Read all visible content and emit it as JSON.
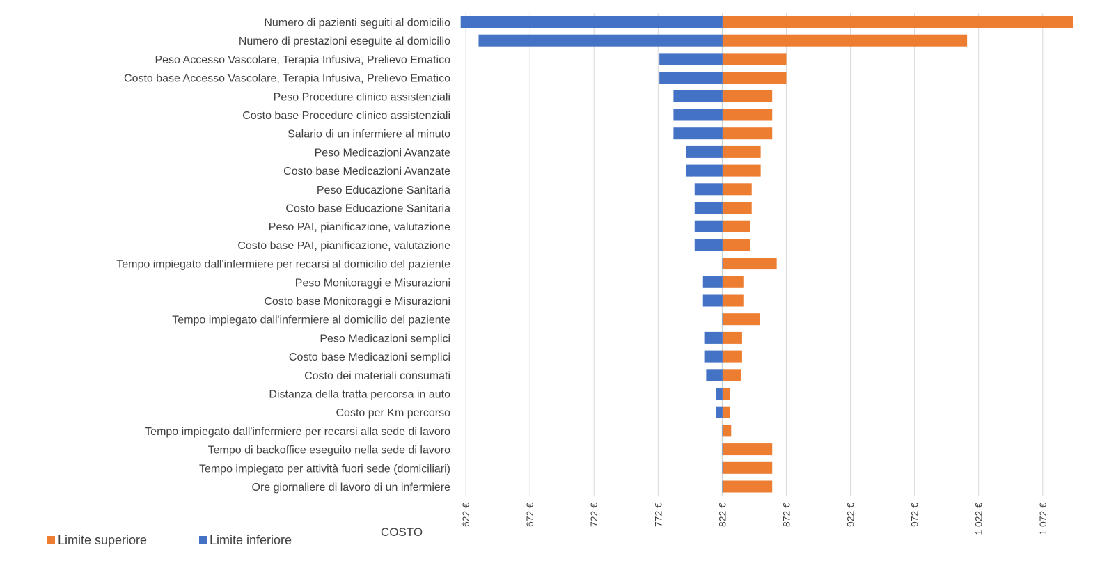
{
  "chart_data": {
    "type": "bar",
    "orientation": "horizontal",
    "variant": "tornado",
    "base_value": 822.5,
    "xlabel": "COSTO",
    "xlim": [
      616,
      1096
    ],
    "x_ticks": [
      622,
      672,
      722,
      772,
      822,
      872,
      922,
      972,
      1022,
      1072
    ],
    "x_tick_labels": [
      "622 €",
      "672 €",
      "722 €",
      "772 €",
      "822 €",
      "872 €",
      "922 €",
      "972 €",
      "1 022 €",
      "1 072 €"
    ],
    "grid": true,
    "legend_position": "bottom-left",
    "categories": [
      "Numero di pazienti seguiti al domicilio",
      "Numero di prestazioni eseguite al domicilio",
      "Peso Accesso Vascolare, Terapia Infusiva, Prelievo Ematico",
      "Costo base Accesso Vascolare, Terapia Infusiva, Prelievo Ematico",
      "Peso Procedure clinico assistenziali",
      "Costo base Procedure clinico assistenziali",
      "Salario di un infermiere al minuto",
      "Peso Medicazioni Avanzate",
      "Costo base Medicazioni Avanzate",
      "Peso Educazione Sanitaria",
      "Costo base Educazione Sanitaria",
      "Peso PAI, pianificazione, valutazione",
      "Costo base PAI, pianificazione, valutazione",
      "Tempo impiegato dall'infermiere per recarsi al domicilio del paziente",
      "Peso Monitoraggi e Misurazioni",
      "Costo base Monitoraggi e Misurazioni",
      "Tempo impiegato dall'infermiere al domicilio del paziente",
      "Peso Medicazioni semplici",
      "Costo base Medicazioni semplici",
      "Costo dei materiali consumati",
      "Distanza della tratta percorsa in auto",
      "Costo per Km percorso",
      "Tempo impiegato dall'infermiere per recarsi alla sede di lavoro",
      "Tempo di backoffice eseguito nella sede di lavoro",
      "Tempo impiegato per attività fuori sede (domiciliari)",
      "Ore giornaliere di lavoro di un infermiere"
    ],
    "series": [
      {
        "name": "Limite superiore",
        "color": "#ED7D31",
        "values": [
          1096,
          1013,
          872,
          872,
          861,
          861,
          861,
          852,
          852,
          845,
          845,
          844,
          844,
          864.5,
          838.5,
          838.5,
          851.5,
          837.5,
          837.5,
          836.5,
          828,
          828,
          829,
          861,
          861,
          861
        ]
      },
      {
        "name": "Limite inferiore",
        "color": "#4472C4",
        "values": [
          618,
          632,
          773,
          773,
          784,
          784,
          784,
          794,
          794,
          800.5,
          800.5,
          800.5,
          800.5,
          822,
          807,
          807,
          822,
          808,
          808,
          809.5,
          817,
          817,
          822,
          822,
          822,
          822
        ]
      }
    ]
  }
}
